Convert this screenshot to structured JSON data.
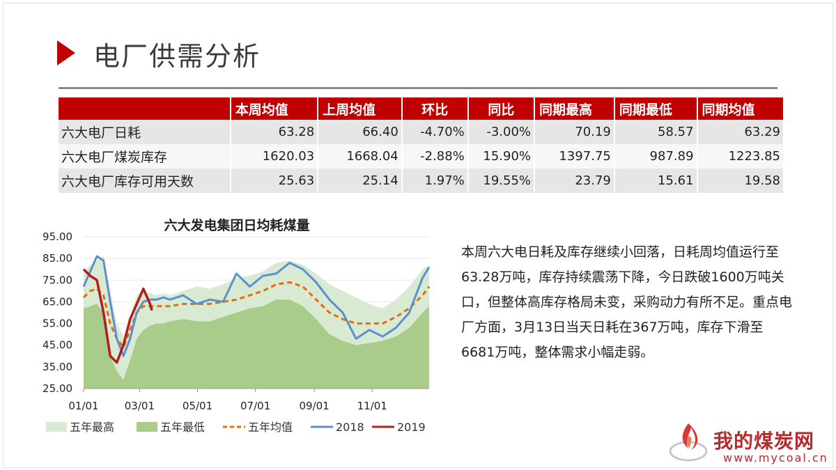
{
  "page": {
    "title": "电厂供需分析"
  },
  "stats_table": {
    "headers": [
      "",
      "本周均值",
      "上周均值",
      "环比",
      "同比",
      "同期最高",
      "同期最低",
      "同期均值"
    ],
    "rows": [
      [
        "六大电厂日耗",
        "63.28",
        "66.40",
        "-4.70%",
        "-3.00%",
        "70.19",
        "58.57",
        "63.29"
      ],
      [
        "六大电厂煤炭库存",
        "1620.03",
        "1668.04",
        "-2.88%",
        "15.90%",
        "1397.75",
        "987.89",
        "1223.85"
      ],
      [
        "六大电厂库存可用天数",
        "25.63",
        "25.14",
        "1.97%",
        "19.55%",
        "23.79",
        "15.61",
        "19.58"
      ]
    ]
  },
  "paragraph": "本周六大电日耗及库存继续小回落，日耗周均值运行至63.28万吨，库存持续震荡下降，今日跌破1600万吨关口，但整体高库存格局未变，采购动力有所不足。重点电厂方面，3月13日当天日耗在367万吨，库存下滑至6681万吨，整体需求小幅走弱。",
  "logo": {
    "name": "我的煤炭网",
    "url": "www.mycoal.cn"
  },
  "colors": {
    "accent": "#c00000",
    "five_high": "#d9ead3",
    "five_low": "#a9cc8a",
    "five_avg": "#e46c0a",
    "y2018": "#5b8fd0",
    "y2019": "#b41d1d"
  },
  "chart_data": {
    "type": "line",
    "title": "六大发电集团日均耗煤量",
    "x_ticks": [
      "01/01",
      "03/01",
      "05/01",
      "07/01",
      "09/01",
      "11/01"
    ],
    "y_ticks": [
      "25.00",
      "35.00",
      "45.00",
      "55.00",
      "65.00",
      "75.00",
      "85.00",
      "95.00"
    ],
    "ylim": [
      25,
      95
    ],
    "x_axis": "day of year, Jan 1 to Dec 31",
    "legend_position": "bottom",
    "series": [
      {
        "name": "五年最高",
        "style": "area",
        "x": [
          1,
          8,
          15,
          22,
          29,
          36,
          43,
          50,
          57,
          64,
          71,
          78,
          85,
          92,
          106,
          120,
          134,
          148,
          162,
          176,
          190,
          204,
          218,
          232,
          246,
          260,
          274,
          288,
          302,
          316,
          330,
          344,
          358,
          365
        ],
        "values": [
          78,
          82,
          84,
          86,
          70,
          55,
          49,
          58,
          68,
          70,
          69,
          68,
          69,
          68,
          70,
          72,
          71,
          73,
          76,
          77,
          79,
          83,
          84,
          82,
          78,
          73,
          70,
          67,
          64,
          62,
          66,
          72,
          80,
          82
        ]
      },
      {
        "name": "五年最低",
        "style": "area",
        "x": [
          1,
          8,
          15,
          22,
          29,
          36,
          43,
          50,
          57,
          64,
          71,
          78,
          85,
          92,
          106,
          120,
          134,
          148,
          162,
          176,
          190,
          204,
          218,
          232,
          246,
          260,
          274,
          288,
          302,
          316,
          330,
          344,
          358,
          365
        ],
        "values": [
          62,
          63,
          64,
          60,
          40,
          33,
          29,
          38,
          48,
          52,
          54,
          55,
          55,
          56,
          57,
          56,
          56,
          58,
          60,
          62,
          63,
          66,
          66,
          63,
          57,
          50,
          47,
          45,
          46,
          47,
          49,
          53,
          60,
          63
        ]
      },
      {
        "name": "五年均值",
        "style": "dashed",
        "x": [
          1,
          8,
          15,
          22,
          29,
          36,
          43,
          50,
          57,
          64,
          71,
          78,
          85,
          92,
          106,
          120,
          134,
          148,
          162,
          176,
          190,
          204,
          218,
          232,
          246,
          260,
          274,
          288,
          302,
          316,
          330,
          344,
          358,
          365
        ],
        "values": [
          67,
          70,
          71,
          68,
          55,
          48,
          44,
          52,
          60,
          63,
          63,
          63,
          63,
          63,
          64,
          64,
          64,
          65,
          66,
          68,
          70,
          73,
          74,
          72,
          66,
          60,
          57,
          55,
          55,
          55,
          58,
          62,
          68,
          72
        ]
      },
      {
        "name": "2018",
        "style": "line",
        "x": [
          1,
          8,
          15,
          22,
          29,
          36,
          43,
          50,
          57,
          64,
          71,
          78,
          85,
          92,
          106,
          120,
          134,
          148,
          162,
          176,
          190,
          204,
          218,
          232,
          246,
          260,
          274,
          288,
          302,
          316,
          330,
          344,
          358,
          365
        ],
        "values": [
          72,
          79,
          86,
          84,
          65,
          48,
          40,
          48,
          60,
          65,
          66,
          66,
          67,
          66,
          68,
          64,
          66,
          65,
          78,
          72,
          77,
          78,
          83,
          80,
          74,
          66,
          60,
          48,
          52,
          49,
          53,
          60,
          76,
          81
        ]
      },
      {
        "name": "2019",
        "style": "line",
        "x": [
          1,
          8,
          15,
          22,
          29,
          36,
          43,
          50,
          57,
          64,
          71,
          73
        ],
        "values": [
          80,
          77,
          75,
          60,
          40,
          37,
          45,
          57,
          64,
          71,
          64,
          61
        ]
      }
    ]
  }
}
